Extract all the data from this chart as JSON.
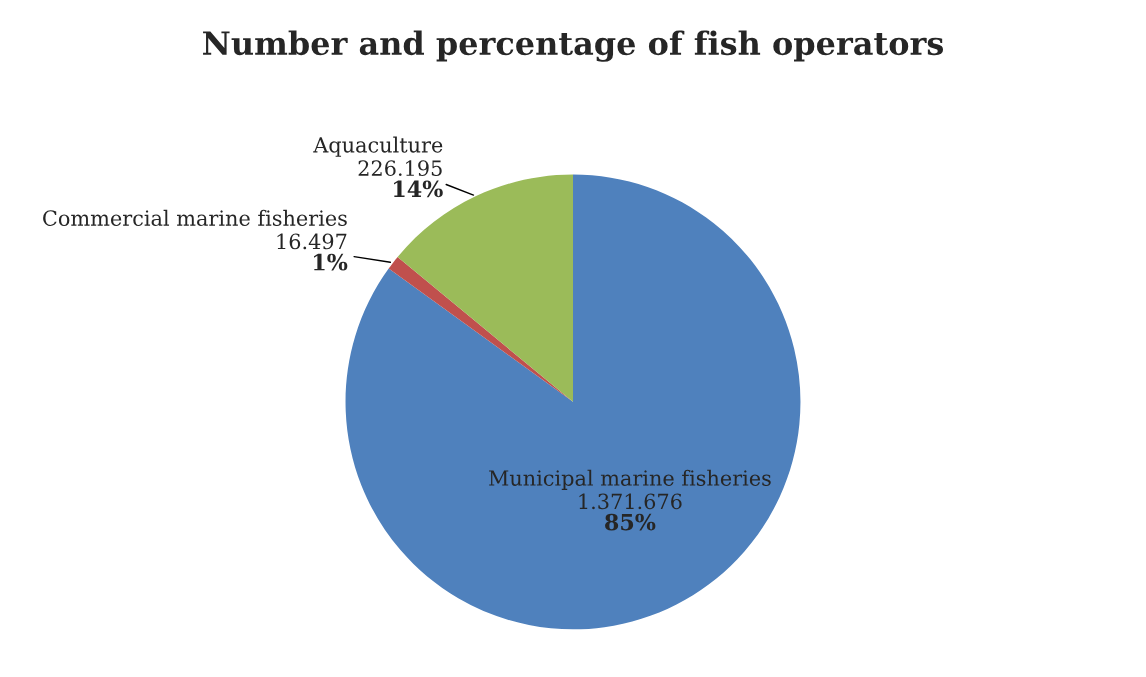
{
  "chart_data": {
    "type": "pie",
    "title": "Number and percentage of fish operators",
    "categories": [
      "Municipal marine fisheries",
      "Commercial marine fisheries",
      "Aquaculture"
    ],
    "values": [
      1371676,
      16497,
      226195
    ],
    "value_labels": [
      "1.371.676\n85%",
      "16.497\n1%",
      "226.195\n14%"
    ],
    "colors": [
      "#4f81bd",
      "#c0504d",
      "#9bbb59"
    ],
    "legend": false
  }
}
